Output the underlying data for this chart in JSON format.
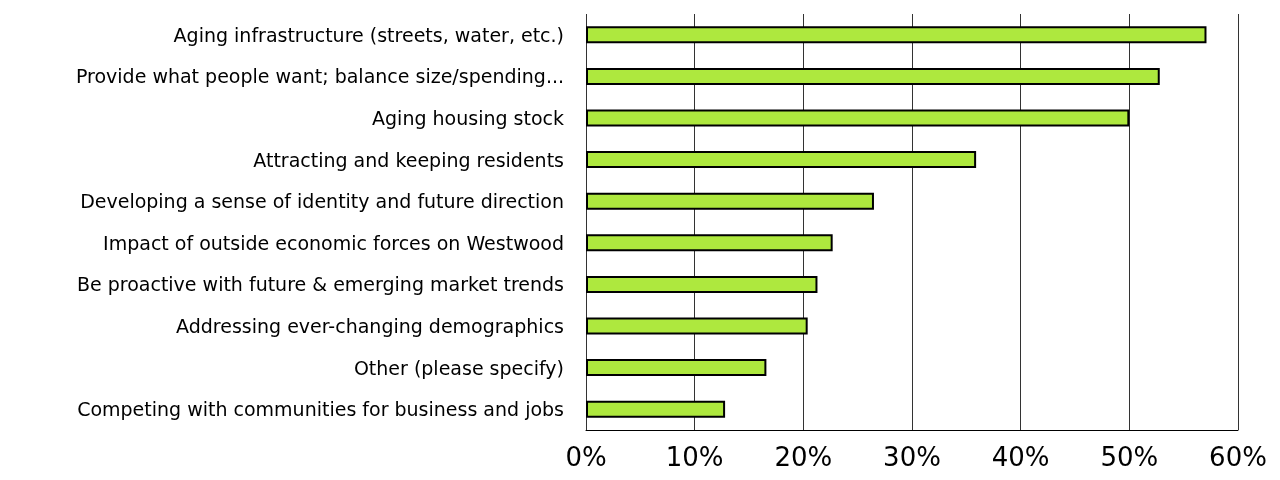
{
  "chart_data": {
    "type": "bar",
    "orientation": "horizontal",
    "categories": [
      "Aging infrastructure (streets, water, etc.)",
      "Provide what people want; balance size/spending...",
      "Aging housing stock",
      "Attracting and keeping residents",
      "Developing a sense of identity and future direction",
      "Impact of outside economic forces on Westwood",
      "Be proactive with future & emerging market trends",
      "Addressing ever-changing demographics",
      "Other (please specify)",
      "Competing with communities for business and jobs"
    ],
    "values": [
      57.1,
      52.8,
      50,
      35.9,
      26.5,
      22.7,
      21.3,
      20.4,
      16.6,
      12.8
    ],
    "color": "#aee83e",
    "xlim": [
      0,
      60
    ],
    "xticks": [
      {
        "value": 0,
        "label": "0%"
      },
      {
        "value": 10,
        "label": "10%"
      },
      {
        "value": 20,
        "label": "20%"
      },
      {
        "value": 30,
        "label": "30%"
      },
      {
        "value": 40,
        "label": "40%"
      },
      {
        "value": 50,
        "label": "50%"
      },
      {
        "value": 60,
        "label": "60%"
      }
    ],
    "grid": "x"
  }
}
